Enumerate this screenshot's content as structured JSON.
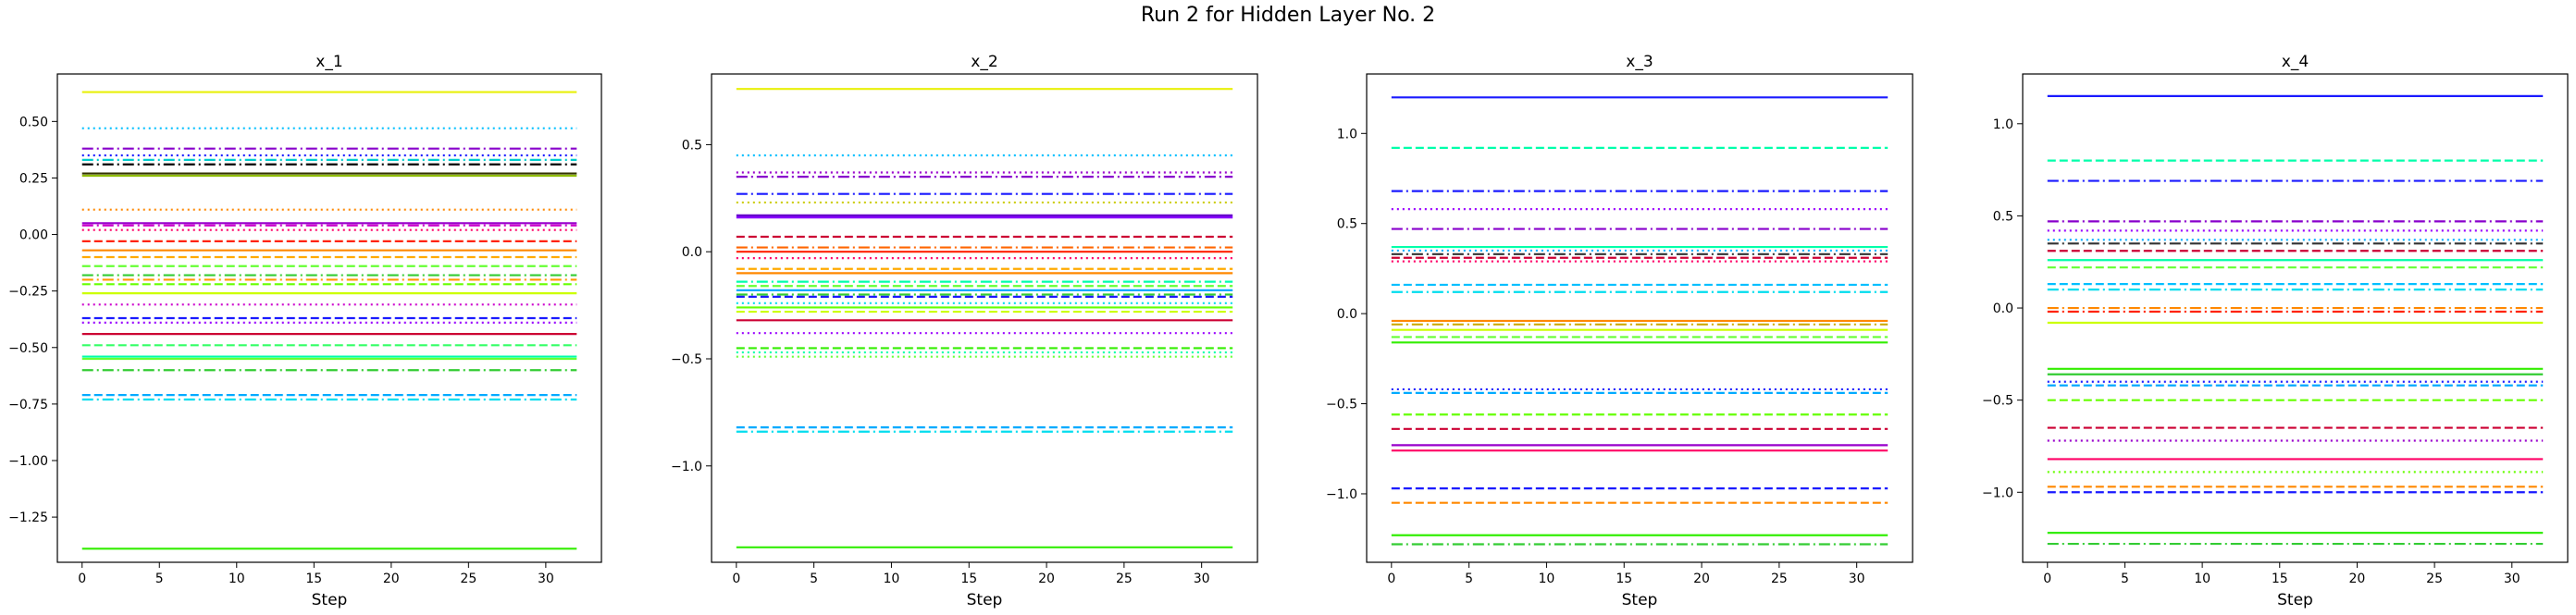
{
  "figure": {
    "title": "Run 2 for Hidden Layer No. 2"
  },
  "chart_data": [
    {
      "type": "line",
      "title": "x_1",
      "xlabel": "Step",
      "ylabel": "",
      "x_range": [
        0,
        32
      ],
      "xlim": [
        -1.6,
        33.6
      ],
      "ylim": [
        -1.45,
        0.71
      ],
      "xticks": [
        0,
        5,
        10,
        15,
        20,
        25,
        30
      ],
      "yticks": [
        0.5,
        0.25,
        0.0,
        -0.25,
        -0.5,
        -0.75,
        -1.0,
        -1.25
      ],
      "ytick_labels": [
        "0.50",
        "0.25",
        "0.00",
        "−0.25",
        "−0.50",
        "−0.75",
        "−1.00",
        "−1.25"
      ],
      "grid": false,
      "series": [
        {
          "value": 0.63,
          "color": "#e8f00a",
          "style": "solid"
        },
        {
          "value": 0.47,
          "color": "#00bfff",
          "style": "dotted"
        },
        {
          "value": 0.38,
          "color": "#8800cc",
          "style": "dashdot"
        },
        {
          "value": 0.35,
          "color": "#1a1aff",
          "style": "dotted"
        },
        {
          "value": 0.33,
          "color": "#00cccc",
          "style": "dashdot"
        },
        {
          "value": 0.31,
          "color": "#000000",
          "style": "dashdot"
        },
        {
          "value": 0.27,
          "color": "#333300",
          "style": "solid"
        },
        {
          "value": 0.26,
          "color": "#8fbc00",
          "style": "solid"
        },
        {
          "value": 0.11,
          "color": "#ff8800",
          "style": "dotted"
        },
        {
          "value": 0.05,
          "color": "#9900cc",
          "style": "solid"
        },
        {
          "value": 0.04,
          "color": "#cc00cc",
          "style": "dashdot"
        },
        {
          "value": 0.02,
          "color": "#ff0066",
          "style": "dotted"
        },
        {
          "value": -0.03,
          "color": "#ff2200",
          "style": "dashed"
        },
        {
          "value": -0.07,
          "color": "#ff8800",
          "style": "solid"
        },
        {
          "value": -0.1,
          "color": "#ffaa00",
          "style": "dashed"
        },
        {
          "value": -0.14,
          "color": "#66ff33",
          "style": "dashed"
        },
        {
          "value": -0.18,
          "color": "#33cc33",
          "style": "dashdot"
        },
        {
          "value": -0.2,
          "color": "#ff9900",
          "style": "dashdot"
        },
        {
          "value": -0.22,
          "color": "#66ff00",
          "style": "dashed"
        },
        {
          "value": -0.26,
          "color": "#ccff00",
          "style": "solid"
        },
        {
          "value": -0.31,
          "color": "#cc00cc",
          "style": "dotted"
        },
        {
          "value": -0.37,
          "color": "#1a1aff",
          "style": "dashed"
        },
        {
          "value": -0.39,
          "color": "#9900ff",
          "style": "dotted"
        },
        {
          "value": -0.44,
          "color": "#cc0033",
          "style": "solid"
        },
        {
          "value": -0.49,
          "color": "#33ff66",
          "style": "dashed"
        },
        {
          "value": -0.54,
          "color": "#00ffaa",
          "style": "solid"
        },
        {
          "value": -0.55,
          "color": "#66ff33",
          "style": "solid"
        },
        {
          "value": -0.6,
          "color": "#33cc33",
          "style": "dashdot"
        },
        {
          "value": -0.71,
          "color": "#00aaff",
          "style": "dashed"
        },
        {
          "value": -0.73,
          "color": "#00ddee",
          "style": "dashdot"
        },
        {
          "value": -1.39,
          "color": "#33ee00",
          "style": "solid"
        }
      ]
    },
    {
      "type": "line",
      "title": "x_2",
      "xlabel": "Step",
      "ylabel": "",
      "x_range": [
        0,
        32
      ],
      "xlim": [
        -1.6,
        33.6
      ],
      "ylim": [
        -1.45,
        0.83
      ],
      "xticks": [
        0,
        5,
        10,
        15,
        20,
        25,
        30
      ],
      "yticks": [
        0.5,
        0.0,
        -0.5,
        -1.0
      ],
      "ytick_labels": [
        "0.5",
        "0.0",
        "−0.5",
        "−1.0"
      ],
      "grid": false,
      "series": [
        {
          "value": 0.76,
          "color": "#e8f00a",
          "style": "solid"
        },
        {
          "value": 0.45,
          "color": "#00bfff",
          "style": "dotted"
        },
        {
          "value": 0.37,
          "color": "#9900cc",
          "style": "dotted"
        },
        {
          "value": 0.35,
          "color": "#8800cc",
          "style": "dashdot"
        },
        {
          "value": 0.27,
          "color": "#1a1aff",
          "style": "dashdot"
        },
        {
          "value": 0.23,
          "color": "#cccc00",
          "style": "dotted"
        },
        {
          "value": 0.17,
          "color": "#6600cc",
          "style": "solid"
        },
        {
          "value": 0.16,
          "color": "#8800ff",
          "style": "solid"
        },
        {
          "value": 0.07,
          "color": "#cc0033",
          "style": "dashed"
        },
        {
          "value": 0.02,
          "color": "#ff6600",
          "style": "dashdot"
        },
        {
          "value": 0.0,
          "color": "#ff2200",
          "style": "solid"
        },
        {
          "value": -0.03,
          "color": "#ff0066",
          "style": "dotted"
        },
        {
          "value": -0.08,
          "color": "#ffaa00",
          "style": "dashed"
        },
        {
          "value": -0.1,
          "color": "#ff8800",
          "style": "solid"
        },
        {
          "value": -0.14,
          "color": "#00ffaa",
          "style": "dashdot"
        },
        {
          "value": -0.16,
          "color": "#66ff33",
          "style": "dashed"
        },
        {
          "value": -0.18,
          "color": "#00aaff",
          "style": "solid"
        },
        {
          "value": -0.2,
          "color": "#33cc33",
          "style": "dashdot"
        },
        {
          "value": -0.21,
          "color": "#1a1aff",
          "style": "dashed"
        },
        {
          "value": -0.24,
          "color": "#00ddee",
          "style": "dotted"
        },
        {
          "value": -0.26,
          "color": "#66ff00",
          "style": "solid"
        },
        {
          "value": -0.28,
          "color": "#ccff00",
          "style": "dashed"
        },
        {
          "value": -0.32,
          "color": "#cc0033",
          "style": "solid"
        },
        {
          "value": -0.38,
          "color": "#9900ff",
          "style": "dotted"
        },
        {
          "value": -0.45,
          "color": "#33ee00",
          "style": "dashed"
        },
        {
          "value": -0.47,
          "color": "#00ffaa",
          "style": "dotted"
        },
        {
          "value": -0.49,
          "color": "#66ff33",
          "style": "dotted"
        },
        {
          "value": -0.82,
          "color": "#00aaff",
          "style": "dashed"
        },
        {
          "value": -0.84,
          "color": "#00ddee",
          "style": "dashdot"
        },
        {
          "value": -1.38,
          "color": "#33ee00",
          "style": "solid"
        }
      ]
    },
    {
      "type": "line",
      "title": "x_3",
      "xlabel": "Step",
      "ylabel": "",
      "x_range": [
        0,
        32
      ],
      "xlim": [
        -1.6,
        33.6
      ],
      "ylim": [
        -1.38,
        1.33
      ],
      "xticks": [
        0,
        5,
        10,
        15,
        20,
        25,
        30
      ],
      "yticks": [
        1.0,
        0.5,
        0.0,
        -0.5,
        -1.0
      ],
      "ytick_labels": [
        "1.0",
        "0.5",
        "0.0",
        "−0.5",
        "−1.0"
      ],
      "grid": false,
      "series": [
        {
          "value": 1.2,
          "color": "#1a1aff",
          "style": "solid"
        },
        {
          "value": 0.92,
          "color": "#00ffaa",
          "style": "dashed"
        },
        {
          "value": 0.68,
          "color": "#1a1aff",
          "style": "dashdot"
        },
        {
          "value": 0.58,
          "color": "#9900ff",
          "style": "dotted"
        },
        {
          "value": 0.47,
          "color": "#8800cc",
          "style": "dashdot"
        },
        {
          "value": 0.37,
          "color": "#00ffaa",
          "style": "solid"
        },
        {
          "value": 0.35,
          "color": "#00aaff",
          "style": "dotted"
        },
        {
          "value": 0.33,
          "color": "#333333",
          "style": "dashdot"
        },
        {
          "value": 0.31,
          "color": "#cc0033",
          "style": "dashed"
        },
        {
          "value": 0.29,
          "color": "#ff0066",
          "style": "dotted"
        },
        {
          "value": 0.16,
          "color": "#00bfff",
          "style": "dashed"
        },
        {
          "value": 0.12,
          "color": "#00ddee",
          "style": "dashdot"
        },
        {
          "value": -0.04,
          "color": "#ff8800",
          "style": "solid"
        },
        {
          "value": -0.06,
          "color": "#ccaa00",
          "style": "dashdot"
        },
        {
          "value": -0.09,
          "color": "#ccff00",
          "style": "solid"
        },
        {
          "value": -0.13,
          "color": "#66ff33",
          "style": "dashed"
        },
        {
          "value": -0.16,
          "color": "#33ee00",
          "style": "solid"
        },
        {
          "value": -0.42,
          "color": "#1a1aff",
          "style": "dotted"
        },
        {
          "value": -0.44,
          "color": "#00aaff",
          "style": "dashed"
        },
        {
          "value": -0.56,
          "color": "#66ff00",
          "style": "dashed"
        },
        {
          "value": -0.64,
          "color": "#cc0033",
          "style": "dashed"
        },
        {
          "value": -0.73,
          "color": "#9900cc",
          "style": "solid"
        },
        {
          "value": -0.76,
          "color": "#ff0066",
          "style": "solid"
        },
        {
          "value": -0.97,
          "color": "#1a1aff",
          "style": "dashed"
        },
        {
          "value": -1.05,
          "color": "#ff8800",
          "style": "dashed"
        },
        {
          "value": -1.23,
          "color": "#33ee00",
          "style": "solid"
        },
        {
          "value": -1.28,
          "color": "#33cc33",
          "style": "dashdot"
        }
      ]
    },
    {
      "type": "line",
      "title": "x_4",
      "xlabel": "Step",
      "ylabel": "",
      "x_range": [
        0,
        32
      ],
      "xlim": [
        -1.6,
        33.6
      ],
      "ylim": [
        -1.38,
        1.27
      ],
      "xticks": [
        0,
        5,
        10,
        15,
        20,
        25,
        30
      ],
      "yticks": [
        1.0,
        0.5,
        0.0,
        -0.5,
        -1.0
      ],
      "ytick_labels": [
        "1.0",
        "0.5",
        "0.0",
        "−0.5",
        "−1.0"
      ],
      "grid": false,
      "series": [
        {
          "value": 1.15,
          "color": "#1a1aff",
          "style": "solid"
        },
        {
          "value": 0.8,
          "color": "#00ffaa",
          "style": "dashed"
        },
        {
          "value": 0.69,
          "color": "#1a1aff",
          "style": "dashdot"
        },
        {
          "value": 0.47,
          "color": "#8800cc",
          "style": "dashdot"
        },
        {
          "value": 0.42,
          "color": "#9900ff",
          "style": "dotted"
        },
        {
          "value": 0.37,
          "color": "#00aaff",
          "style": "dotted"
        },
        {
          "value": 0.35,
          "color": "#333333",
          "style": "dashdot"
        },
        {
          "value": 0.31,
          "color": "#cc0033",
          "style": "dashed"
        },
        {
          "value": 0.26,
          "color": "#00ffaa",
          "style": "solid"
        },
        {
          "value": 0.22,
          "color": "#66ff33",
          "style": "dashed"
        },
        {
          "value": 0.13,
          "color": "#00bfff",
          "style": "dashed"
        },
        {
          "value": 0.1,
          "color": "#00ddee",
          "style": "dashdot"
        },
        {
          "value": 0.0,
          "color": "#ff8800",
          "style": "dashdot"
        },
        {
          "value": -0.02,
          "color": "#ff2200",
          "style": "dashdot"
        },
        {
          "value": -0.08,
          "color": "#ccff00",
          "style": "solid"
        },
        {
          "value": -0.33,
          "color": "#33ee00",
          "style": "solid"
        },
        {
          "value": -0.36,
          "color": "#33cc33",
          "style": "solid"
        },
        {
          "value": -0.4,
          "color": "#1a1aff",
          "style": "dotted"
        },
        {
          "value": -0.42,
          "color": "#00aaff",
          "style": "dashed"
        },
        {
          "value": -0.5,
          "color": "#66ff00",
          "style": "dashed"
        },
        {
          "value": -0.65,
          "color": "#cc0033",
          "style": "dashed"
        },
        {
          "value": -0.72,
          "color": "#9900cc",
          "style": "dotted"
        },
        {
          "value": -0.82,
          "color": "#ff0066",
          "style": "solid"
        },
        {
          "value": -0.89,
          "color": "#66ff00",
          "style": "dotted"
        },
        {
          "value": -0.97,
          "color": "#ff8800",
          "style": "dashed"
        },
        {
          "value": -1.0,
          "color": "#1a1aff",
          "style": "dashed"
        },
        {
          "value": -1.22,
          "color": "#33ee00",
          "style": "solid"
        },
        {
          "value": -1.28,
          "color": "#33cc33",
          "style": "dashdot"
        }
      ]
    }
  ]
}
